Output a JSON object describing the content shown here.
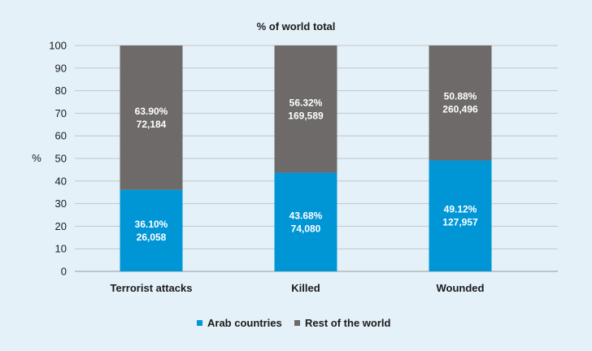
{
  "chart_data": {
    "type": "bar",
    "stacked": true,
    "title": "% of world total",
    "ylabel": "%",
    "xlabel": "",
    "ylim": [
      0,
      100
    ],
    "yticks": [
      0,
      10,
      20,
      30,
      40,
      50,
      60,
      70,
      80,
      90,
      100
    ],
    "grid": true,
    "legend_position": "bottom",
    "categories": [
      "Terrorist attacks",
      "Killed",
      "Wounded"
    ],
    "series": [
      {
        "name": "Arab countries",
        "color": "#0096d6",
        "values": [
          36.1,
          43.68,
          49.12
        ],
        "labels": [
          [
            "36.10%",
            "26,058"
          ],
          [
            "43.68%",
            "74,080"
          ],
          [
            "49.12%",
            "127,957"
          ]
        ]
      },
      {
        "name": "Rest of the world",
        "color": "#6d6a69",
        "values": [
          63.9,
          56.32,
          50.88
        ],
        "labels": [
          [
            "63.90%",
            "72,184"
          ],
          [
            "56.32%",
            "169,589"
          ],
          [
            "50.88%",
            "260,496"
          ]
        ]
      }
    ]
  }
}
